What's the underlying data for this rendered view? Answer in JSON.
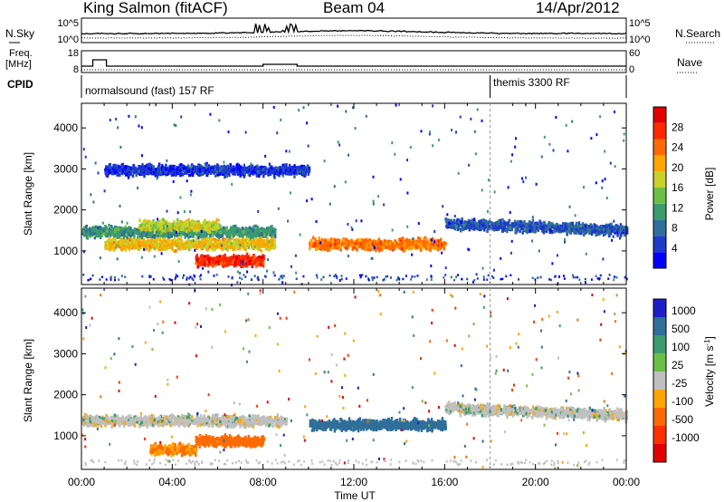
{
  "header": {
    "station": "King Salmon (fitACF)",
    "beam": "Beam 04",
    "date": "14/Apr/2012"
  },
  "panels": {
    "noise": {
      "left_label": "N.Sky",
      "right_label": "N.Search",
      "ticks": [
        "10^5",
        "10^0"
      ]
    },
    "freq": {
      "left_label_1": "Freq.",
      "left_label_2": "[MHz]",
      "left_ticks": [
        "18",
        "8"
      ],
      "right_label": "Nave",
      "right_ticks": [
        "60",
        "0"
      ]
    },
    "cpid": {
      "label": "CPID",
      "program_1": "normalsound (fast) 157 RF",
      "program_2": "themis 3300 RF"
    }
  },
  "colors": {
    "power_scale": [
      "#0000ff",
      "#1e3cc8",
      "#2f6f9a",
      "#3c9b6e",
      "#6bbf46",
      "#c8d228",
      "#ffa500",
      "#ff6a00",
      "#ff2a00",
      "#e00000"
    ],
    "velocity_scale": [
      "#1e1ec8",
      "#2f6f9a",
      "#3c9b6e",
      "#6bbf46",
      "#c0c0c0",
      "#ffa500",
      "#ff6a00",
      "#ff3000",
      "#e00000"
    ]
  },
  "chart_data": [
    {
      "type": "heatmap",
      "name": "power",
      "ylabel": "Slant Range [km]",
      "yticks": [
        1000,
        2000,
        3000,
        4000
      ],
      "ylim": [
        180,
        4600
      ],
      "xlim": [
        0,
        24
      ],
      "colorbar": {
        "label": "Power [dB]",
        "ticks": [
          4,
          8,
          12,
          16,
          20,
          24,
          28
        ]
      },
      "features": [
        {
          "t_start": 0.0,
          "t_end": 8.5,
          "range_km": 1500,
          "power_db": 10
        },
        {
          "t_start": 1.0,
          "t_end": 8.5,
          "range_km": 1200,
          "power_db": 18
        },
        {
          "t_start": 2.5,
          "t_end": 6.0,
          "range_km": 1650,
          "power_db": 16
        },
        {
          "t_start": 5.0,
          "t_end": 8.0,
          "range_km": 800,
          "power_db": 26
        },
        {
          "t_start": 10.0,
          "t_end": 16.0,
          "range_km": 1200,
          "power_db": 22
        },
        {
          "t_start": 16.0,
          "t_end": 24.0,
          "range_km": 1700,
          "power_db": 6
        },
        {
          "t_start": 1.0,
          "t_end": 10.0,
          "range_km": 3000,
          "power_db": 4
        }
      ]
    },
    {
      "type": "heatmap",
      "name": "velocity",
      "ylabel": "Slant Range [km]",
      "xlabel": "Time UT",
      "xticks": [
        "00:00",
        "04:00",
        "08:00",
        "12:00",
        "16:00",
        "20:00",
        "00:00"
      ],
      "yticks": [
        1000,
        2000,
        3000,
        4000
      ],
      "ylim": [
        180,
        4600
      ],
      "xlim": [
        0,
        24
      ],
      "colorbar": {
        "label": "Velocity [m s",
        "label_exp": "-1",
        "ticks": [
          "1000",
          "500",
          "100",
          "25",
          "-25",
          "-100",
          "-500",
          "-1000"
        ]
      },
      "features": [
        {
          "t_start": 0.0,
          "t_end": 9.0,
          "range_km": 1400,
          "velocity": 0
        },
        {
          "t_start": 5.0,
          "t_end": 8.0,
          "range_km": 900,
          "velocity": -150
        },
        {
          "t_start": 3.0,
          "t_end": 5.0,
          "range_km": 700,
          "velocity": -100
        },
        {
          "t_start": 10.0,
          "t_end": 16.0,
          "range_km": 1300,
          "velocity": 150
        },
        {
          "t_start": 16.0,
          "t_end": 24.0,
          "range_km": 1700,
          "velocity": 0
        }
      ]
    }
  ]
}
